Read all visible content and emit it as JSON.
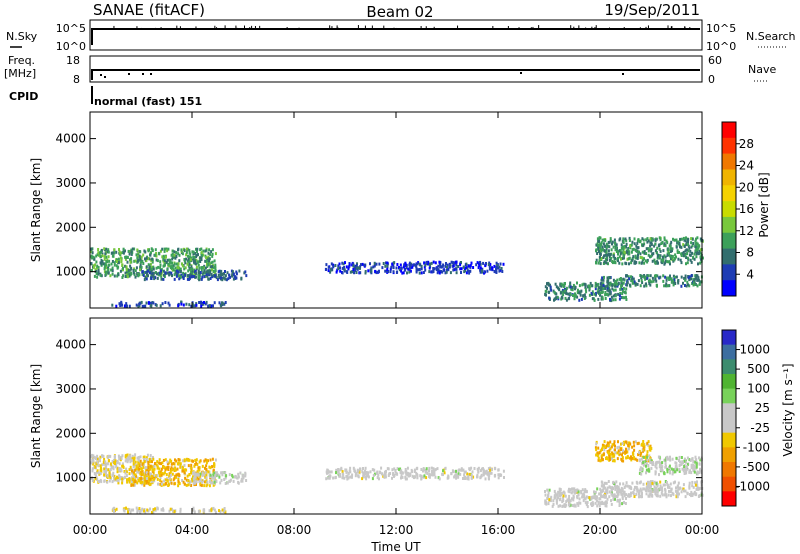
{
  "header": {
    "title_left": "SANAE (fitACF)",
    "title_center": "Beam 02",
    "title_right": "19/Sep/2011"
  },
  "top_panels": {
    "nsky_label": "N.Sky",
    "nsky_top": "10^5",
    "nsky_bottom": "10^0",
    "nsearch_label": "N.Search",
    "nsearch_top": "10^5",
    "nsearch_bottom": "10^0",
    "freq_label_1": "Freq.",
    "freq_label_2": "[MHz]",
    "freq_top": "18",
    "freq_bottom": "8",
    "nave_label": "Nave",
    "nave_top": "60",
    "nave_bottom": "0",
    "cpid_label": "CPID",
    "cpid_text": "normal (fast) 151"
  },
  "axes": {
    "ylabel": "Slant Range [km]",
    "xlabel": "Time UT"
  },
  "colorbars": {
    "power_label": "Power [dB]",
    "power_ticks": [
      "28",
      "24",
      "20",
      "16",
      "12",
      "8",
      "4"
    ],
    "power_colors": [
      "#ff0000",
      "#ff3300",
      "#f07800",
      "#f0b400",
      "#f5d200",
      "#c8dc00",
      "#78c83c",
      "#3ca05a",
      "#326e6e",
      "#1e3cb4",
      "#0000ff"
    ],
    "velocity_label": "Velocity [m s⁻¹]",
    "velocity_ticks": [
      "1000",
      "500",
      "100",
      "25",
      "-25",
      "-100",
      "-500",
      "-1000"
    ],
    "velocity_colors": [
      "#2828c8",
      "#3c6ea0",
      "#3c8c6e",
      "#50b432",
      "#78d25a",
      "#c8c8c8",
      "#c8c8c8",
      "#f0c800",
      "#f0a000",
      "#f07800",
      "#f05000",
      "#ff0000"
    ]
  },
  "chart_data": [
    {
      "type": "heatmap",
      "name": "power",
      "ylabel": "Slant Range [km]",
      "xlabel": "Time UT",
      "x_ticks": [
        "00:00",
        "04:00",
        "08:00",
        "12:00",
        "16:00",
        "20:00",
        "00:00"
      ],
      "x_range_hours": [
        0,
        24
      ],
      "y_ticks": [
        1000,
        2000,
        3000,
        4000
      ],
      "ylim": [
        180,
        4600
      ],
      "zlabel": "Power [dB]",
      "zlim": [
        0,
        32
      ],
      "echo_regions": [
        {
          "t": [
            0.0,
            4.9
          ],
          "r": [
            900,
            1550
          ],
          "z": 10
        },
        {
          "t": [
            2.0,
            6.1
          ],
          "r": [
            850,
            1050
          ],
          "z": 6
        },
        {
          "t": [
            0.8,
            5.3
          ],
          "r": [
            250,
            350
          ],
          "z": 5
        },
        {
          "t": [
            9.2,
            16.2
          ],
          "r": [
            1000,
            1250
          ],
          "z": 4
        },
        {
          "t": [
            17.8,
            21.0
          ],
          "r": [
            380,
            780
          ],
          "z": 8
        },
        {
          "t": [
            19.8,
            24.0
          ],
          "r": [
            1200,
            1800
          ],
          "z": 9
        },
        {
          "t": [
            20.0,
            24.0
          ],
          "r": [
            700,
            950
          ],
          "z": 8
        }
      ]
    },
    {
      "type": "heatmap",
      "name": "velocity",
      "ylabel": "Slant Range [km]",
      "xlabel": "Time UT",
      "x_ticks": [
        "00:00",
        "04:00",
        "08:00",
        "12:00",
        "16:00",
        "20:00",
        "00:00"
      ],
      "x_range_hours": [
        0,
        24
      ],
      "y_ticks": [
        1000,
        2000,
        3000,
        4000
      ],
      "ylim": [
        180,
        4600
      ],
      "zlabel": "Velocity [m s⁻¹]",
      "zlim": [
        -1000,
        1000
      ],
      "echo_regions": [
        {
          "t": [
            0.0,
            2.5
          ],
          "r": [
            900,
            1550
          ],
          "z": -100
        },
        {
          "t": [
            1.5,
            4.9
          ],
          "r": [
            850,
            1450
          ],
          "z": -300
        },
        {
          "t": [
            4.0,
            6.1
          ],
          "r": [
            900,
            1150
          ],
          "z": 50
        },
        {
          "t": [
            0.8,
            5.3
          ],
          "r": [
            250,
            350
          ],
          "z": -100
        },
        {
          "t": [
            9.2,
            16.2
          ],
          "r": [
            1000,
            1250
          ],
          "z": 0
        },
        {
          "t": [
            17.8,
            21.0
          ],
          "r": [
            380,
            780
          ],
          "z": 0
        },
        {
          "t": [
            19.8,
            22.0
          ],
          "r": [
            1400,
            1850
          ],
          "z": -300
        },
        {
          "t": [
            21.5,
            24.0
          ],
          "r": [
            1100,
            1500
          ],
          "z": 100
        },
        {
          "t": [
            20.0,
            24.0
          ],
          "r": [
            600,
            950
          ],
          "z": 0
        }
      ]
    }
  ]
}
